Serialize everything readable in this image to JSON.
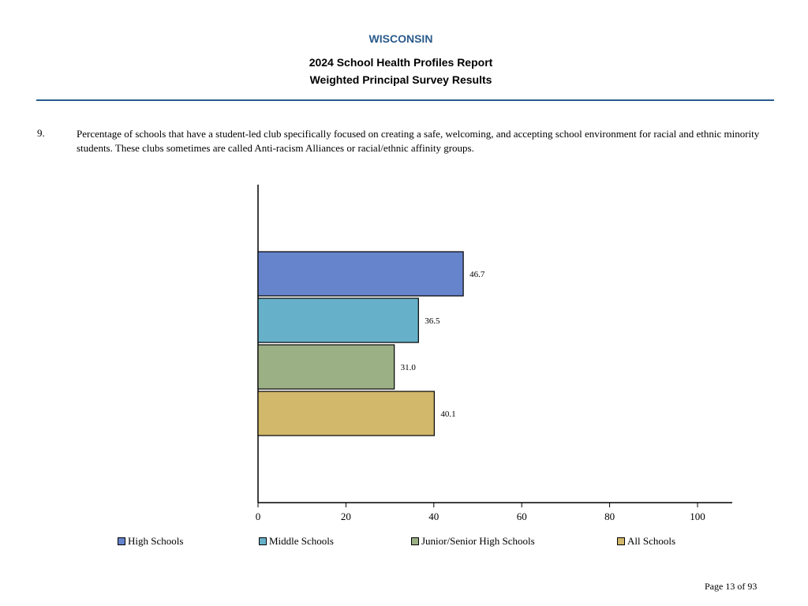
{
  "header": {
    "state": "WISCONSIN",
    "report_title": "2024 School Health Profiles Report",
    "survey_title": "Weighted Principal Survey Results"
  },
  "question": {
    "number": "9.",
    "text": "Percentage of schools that have a student-led club specifically focused on creating a safe, welcoming, and accepting school environment for racial and ethnic minority students.  These clubs sometimes are called Anti-racism Alliances or racial/ethnic affinity groups."
  },
  "chart_data": {
    "type": "bar",
    "orientation": "horizontal",
    "categories": [
      "High Schools",
      "Middle Schools",
      "Junior/Senior High Schools",
      "All Schools"
    ],
    "values": [
      46.7,
      36.5,
      31.0,
      40.1
    ],
    "value_labels": [
      "46.7",
      "36.5",
      "31.0",
      "40.1"
    ],
    "colors": [
      "#6684cc",
      "#66b1c9",
      "#9bb085",
      "#d2b86b"
    ],
    "xlim": [
      0,
      100
    ],
    "x_ticks": [
      0,
      20,
      40,
      60,
      80,
      100
    ],
    "x_tick_labels": [
      "0",
      "20",
      "40",
      "60",
      "80",
      "100"
    ],
    "grid": false,
    "legend_position": "bottom"
  },
  "legend": [
    {
      "label": "High Schools",
      "color": "#6684cc"
    },
    {
      "label": "Middle Schools",
      "color": "#66b1c9"
    },
    {
      "label": "Junior/Senior High Schools",
      "color": "#9bb085"
    },
    {
      "label": "All Schools",
      "color": "#d2b86b"
    }
  ],
  "footer": {
    "page": "Page 13 of 93"
  }
}
